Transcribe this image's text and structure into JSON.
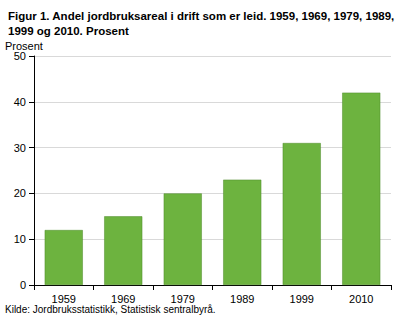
{
  "chart_data": {
    "type": "bar",
    "title": "Figur 1. Andel jordbruksareal i drift som er leid. 1959, 1969, 1979, 1989, 1999 og 2010. Prosent",
    "ylabel": "Prosent",
    "source": "Kilde: Jordbruksstatistikk, Statistisk sentralbyrå.",
    "categories": [
      "1959",
      "1969",
      "1979",
      "1989",
      "1999",
      "2010"
    ],
    "values": [
      12,
      15,
      20,
      23,
      31,
      42
    ],
    "color": "#6db33f",
    "ylim": [
      0,
      50
    ],
    "yticks": [
      0,
      10,
      20,
      30,
      40,
      50
    ],
    "grid": true
  }
}
